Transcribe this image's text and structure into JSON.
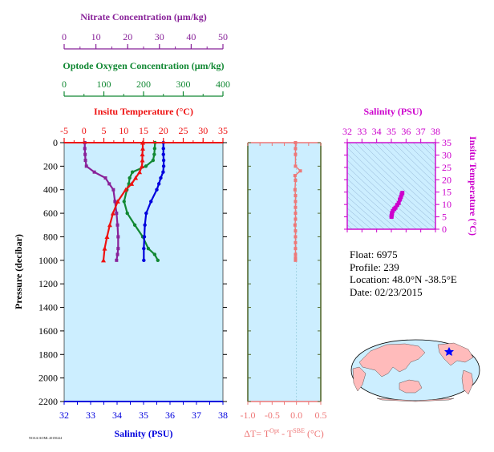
{
  "colors": {
    "nitrate": "#882299",
    "oxygen": "#118833",
    "temperature": "#ee1111",
    "salinity": "#0000dd",
    "delta_t": "#ee7777",
    "panel_bg": "#cceeff",
    "ts_axis": "#cc00cc",
    "olive_axis": "#556b2f"
  },
  "info": {
    "float": "Float:  6975",
    "profile": "Profile:  239",
    "location": "Location:  48.0°N  -38.5°E",
    "date": "Date:  02/23/2015"
  },
  "tiny_text": "NOAA/AOML 20150224",
  "chart_data": [
    {
      "type": "line",
      "panel": "profile",
      "ylabel": "Pressure (decibar)",
      "ylim": [
        2200,
        0
      ],
      "yticks": [
        0,
        200,
        400,
        600,
        800,
        1000,
        1200,
        1400,
        1600,
        1800,
        2000,
        2200
      ],
      "axes": {
        "nitrate": {
          "label": "Nitrate Concentration (μm/kg)",
          "xlim": [
            0,
            50
          ],
          "ticks": [
            0,
            10,
            20,
            30,
            40,
            50
          ]
        },
        "oxygen": {
          "label": "Optode Oxygen Concentration (μm/kg)",
          "xlim": [
            0,
            400
          ],
          "ticks": [
            0,
            100,
            200,
            300,
            400
          ]
        },
        "temperature": {
          "label": "Insitu Temperature (°C)",
          "xlim": [
            -5,
            35
          ],
          "ticks": [
            -5,
            0,
            5,
            10,
            15,
            20,
            25,
            30,
            35
          ]
        },
        "salinity": {
          "label": "Salinity (PSU)",
          "xlim": [
            32,
            38
          ],
          "ticks": [
            32,
            33,
            34,
            35,
            36,
            37,
            38
          ]
        }
      },
      "series": [
        {
          "axis": "nitrate",
          "marker": "square",
          "x": [
            6.5,
            6.5,
            6.6,
            6.7,
            7.0,
            9.5,
            13.0,
            14.2,
            15.5,
            16.0,
            16.5,
            16.8,
            17.0,
            17.0,
            16.8,
            16.5
          ],
          "y": [
            0,
            50,
            100,
            150,
            200,
            250,
            300,
            350,
            400,
            500,
            600,
            700,
            800,
            900,
            950,
            1000
          ]
        },
        {
          "axis": "oxygen",
          "marker": "circle",
          "x": [
            229,
            228,
            227,
            224,
            206,
            172,
            165,
            163,
            158,
            151,
            159,
            178,
            198,
            212,
            228,
            236
          ],
          "y": [
            0,
            50,
            100,
            150,
            200,
            250,
            300,
            350,
            400,
            500,
            600,
            700,
            800,
            900,
            950,
            1000
          ]
        },
        {
          "axis": "temperature",
          "marker": "triangle",
          "x": [
            14.8,
            14.8,
            14.7,
            14.7,
            14.6,
            14.0,
            13.0,
            12.0,
            10.5,
            8.5,
            7.3,
            6.5,
            5.8,
            5.2,
            4.9
          ],
          "y": [
            0,
            50,
            100,
            150,
            200,
            250,
            300,
            350,
            400,
            500,
            600,
            700,
            800,
            900,
            1000
          ]
        },
        {
          "axis": "salinity",
          "marker": "circle",
          "x": [
            35.75,
            35.75,
            35.75,
            35.76,
            35.76,
            35.74,
            35.65,
            35.58,
            35.5,
            35.28,
            35.1,
            35.05,
            35.03,
            35.01,
            35.01
          ],
          "y": [
            0,
            50,
            100,
            150,
            200,
            250,
            300,
            350,
            400,
            500,
            600,
            700,
            800,
            900,
            1000
          ]
        }
      ]
    },
    {
      "type": "line",
      "panel": "delta_t",
      "xlabel": "ΔT= T",
      "xlabel_sup1": "Opt",
      "xlabel_mid": " - T",
      "xlabel_sup2": "SBE",
      "xlabel_unit": " (°C)",
      "xlim": [
        -1.0,
        0.5
      ],
      "xticks": [
        "-1.0",
        "-0.5",
        "0.0",
        "0.5"
      ],
      "ylim": [
        2200,
        0
      ],
      "series": [
        {
          "marker": "square",
          "x": [
            -0.02,
            -0.02,
            -0.02,
            -0.02,
            0.08,
            -0.03,
            -0.02,
            -0.03,
            -0.02,
            -0.02,
            -0.02,
            -0.02,
            -0.02,
            -0.03,
            -0.02,
            -0.02,
            -0.02,
            -0.02,
            -0.02,
            -0.02,
            -0.02
          ],
          "y": [
            0,
            50,
            100,
            200,
            240,
            280,
            320,
            400,
            450,
            500,
            550,
            600,
            650,
            700,
            750,
            800,
            850,
            900,
            950,
            980,
            1000
          ]
        }
      ]
    },
    {
      "type": "scatter",
      "panel": "ts",
      "title": "Salinity (PSU)",
      "xlim": [
        32,
        38
      ],
      "xticks": [
        32,
        33,
        34,
        35,
        36,
        37,
        38
      ],
      "ylabel": "Insitu Temperature (°C)",
      "ylim": [
        0,
        35
      ],
      "yticks": [
        0,
        5,
        10,
        15,
        20,
        25,
        30,
        35
      ],
      "series": [
        {
          "marker": "square",
          "x": [
            35.01,
            35.01,
            35.03,
            35.05,
            35.1,
            35.2,
            35.28,
            35.4,
            35.5,
            35.58,
            35.65,
            35.7,
            35.75
          ],
          "y": [
            5.0,
            5.3,
            5.9,
            6.6,
            7.4,
            8.2,
            8.7,
            9.8,
            10.6,
            12.0,
            13.0,
            14.0,
            14.7
          ]
        }
      ]
    }
  ]
}
